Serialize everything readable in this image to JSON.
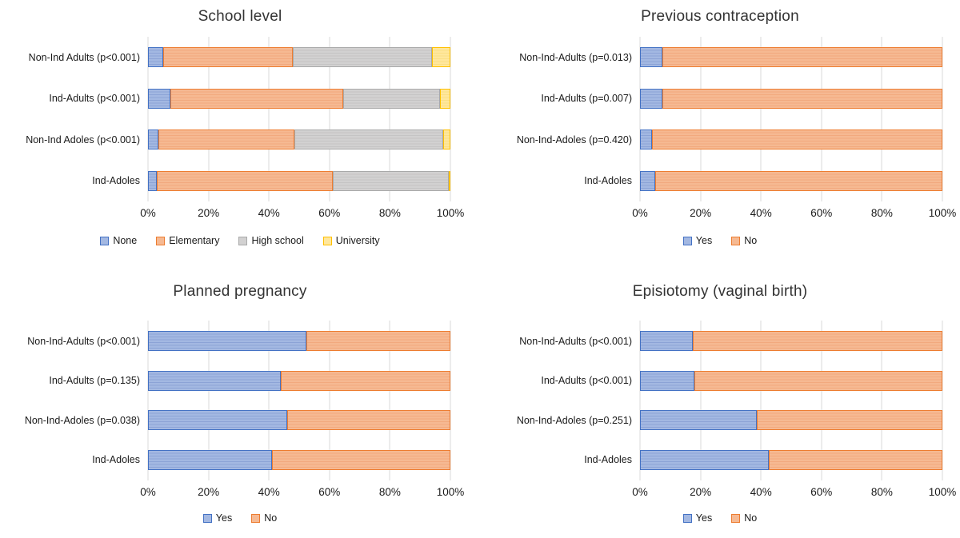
{
  "page": {
    "background": "#ffffff"
  },
  "series_colors": {
    "blue": {
      "fill": "#A3B8E2",
      "stripe": "#8CA3D6",
      "border": "#4472C4"
    },
    "orange": {
      "fill": "#F6B992",
      "stripe": "#F2A97E",
      "border": "#ED7D31"
    },
    "gray": {
      "fill": "#D2D1D1",
      "stripe": "#C5C4C4",
      "border": "#A9A9A9"
    },
    "yellow": {
      "fill": "#FFE79C",
      "stripe": "#FADF85",
      "border": "#FFC000"
    }
  },
  "chart_data": [
    {
      "type": "bar",
      "subtype": "horizontal-stacked-100",
      "title": "School level",
      "categories": [
        "Non-Ind Adults (p<0.001)",
        "Ind-Adults (p<0.001)",
        "Non-Ind Adoles (p<0.001)",
        "Ind-Adoles"
      ],
      "series": [
        {
          "name": "None",
          "color": "blue",
          "values": [
            5,
            7.5,
            3.5,
            3
          ]
        },
        {
          "name": "Elementary",
          "color": "orange",
          "values": [
            43,
            57,
            45,
            58
          ]
        },
        {
          "name": "High school",
          "color": "gray",
          "values": [
            46,
            32,
            49,
            38.5
          ]
        },
        {
          "name": "University",
          "color": "yellow",
          "values": [
            6,
            3.5,
            2.5,
            0.5
          ]
        }
      ],
      "xlim": [
        0,
        100
      ],
      "x_tick_labels": [
        "0%",
        "20%",
        "40%",
        "60%",
        "80%",
        "100%"
      ],
      "grid": "vertical",
      "legend_position": "bottom"
    },
    {
      "type": "bar",
      "subtype": "horizontal-stacked-100",
      "title": "Previous contraception",
      "categories": [
        "Non-Ind-Adults (p=0.013)",
        "Ind-Adults (p=0.007)",
        "Non-Ind-Adoles (p=0.420)",
        "Ind-Adoles"
      ],
      "series": [
        {
          "name": "Yes",
          "color": "blue",
          "values": [
            7.5,
            7.5,
            4,
            5
          ]
        },
        {
          "name": "No",
          "color": "orange",
          "values": [
            92.5,
            92.5,
            96,
            95
          ]
        }
      ],
      "xlim": [
        0,
        100
      ],
      "x_tick_labels": [
        "0%",
        "20%",
        "40%",
        "60%",
        "80%",
        "100%"
      ],
      "grid": "vertical",
      "legend_position": "bottom"
    },
    {
      "type": "bar",
      "subtype": "horizontal-stacked-100",
      "title": "Planned pregnancy",
      "categories": [
        "Non-Ind-Adults (p<0.001)",
        "Ind-Adults (p=0.135)",
        "Non-Ind-Adoles (p=0.038)",
        "Ind-Adoles"
      ],
      "series": [
        {
          "name": "Yes",
          "color": "blue",
          "values": [
            52.5,
            44,
            46,
            41
          ]
        },
        {
          "name": "No",
          "color": "orange",
          "values": [
            47.5,
            56,
            54,
            59
          ]
        }
      ],
      "xlim": [
        0,
        100
      ],
      "x_tick_labels": [
        "0%",
        "20%",
        "40%",
        "60%",
        "80%",
        "100%"
      ],
      "grid": "vertical",
      "legend_position": "bottom"
    },
    {
      "type": "bar",
      "subtype": "horizontal-stacked-100",
      "title": "Episiotomy (vaginal birth)",
      "categories": [
        "Non-Ind-Adults (p<0.001)",
        "Ind-Adults (p<0.001)",
        "Non-Ind-Adoles (p=0.251)",
        "Ind-Adoles"
      ],
      "series": [
        {
          "name": "Yes",
          "color": "blue",
          "values": [
            17.5,
            18,
            38.5,
            42.5
          ]
        },
        {
          "name": "No",
          "color": "orange",
          "values": [
            82.5,
            82,
            61.5,
            57.5
          ]
        }
      ],
      "xlim": [
        0,
        100
      ],
      "x_tick_labels": [
        "0%",
        "20%",
        "40%",
        "60%",
        "80%",
        "100%"
      ],
      "grid": "vertical",
      "legend_position": "bottom"
    }
  ]
}
